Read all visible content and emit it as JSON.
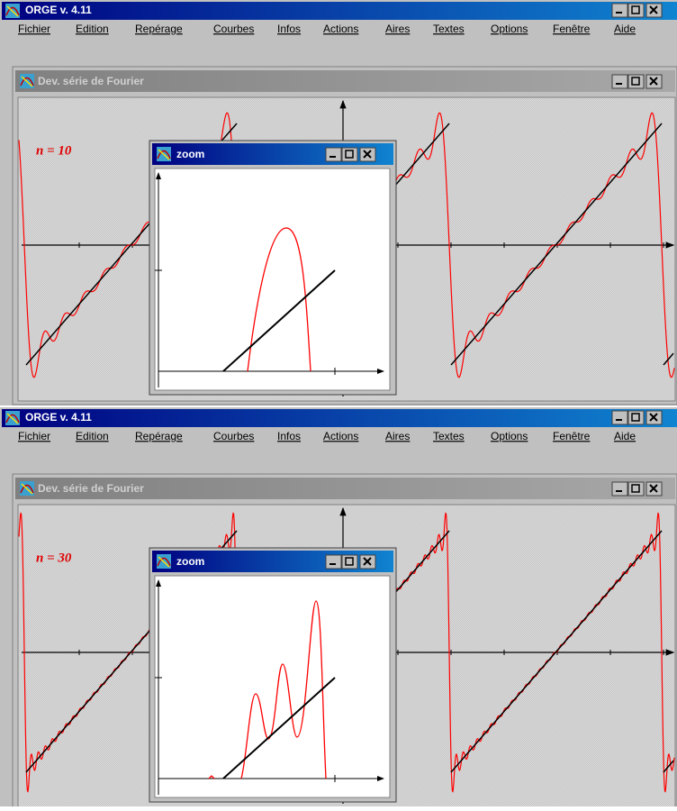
{
  "windows": [
    {
      "title": "ORGE v. 4.11",
      "menu": [
        "Fichier",
        "Edition",
        "Repérage",
        "Courbes",
        "Infos",
        "Actions",
        "Aires",
        "Textes",
        "Options",
        "Fenêtre",
        "Aide"
      ],
      "document_title": "Dev. série de Fourier",
      "label": "n = 10",
      "zoom_title": "zoom"
    },
    {
      "title": "ORGE v. 4.11",
      "menu": [
        "Fichier",
        "Edition",
        "Repérage",
        "Courbes",
        "Infos",
        "Actions",
        "Aires",
        "Textes",
        "Options",
        "Fenêtre",
        "Aide"
      ],
      "document_title": "Dev. série de Fourier",
      "label": "n = 30",
      "zoom_title": "zoom"
    }
  ]
}
